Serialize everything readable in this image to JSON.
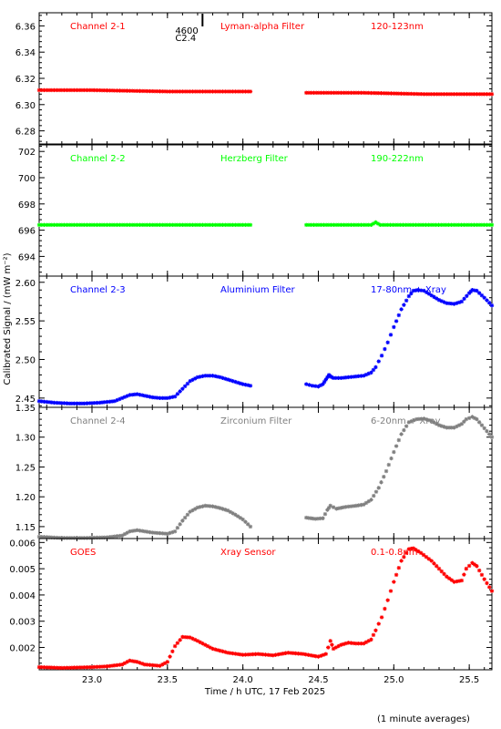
{
  "chart_data": {
    "type": "scatter",
    "ylabel": "Calibrated Signal / (mW m⁻²)",
    "xlabel": "Time / h UTC, 17 Feb 2025",
    "footnote": "(1 minute averages)",
    "xlim": [
      22.65,
      25.65
    ],
    "xticks": [
      "23.0",
      "23.5",
      "24.0",
      "24.5",
      "25.0",
      "25.5"
    ],
    "flare_marker": {
      "x": 23.66,
      "labels": [
        "4600",
        "C2.4"
      ]
    },
    "panels": [
      {
        "channel": "Channel 2-1",
        "filter": "Lyman-alpha Filter",
        "band": "120-123nm",
        "color": "#ff0000",
        "ylim": [
          6.27,
          6.37
        ],
        "yticks": [
          "6.28",
          "6.30",
          "6.32",
          "6.34",
          "6.36"
        ],
        "series": [
          {
            "x": [
              22.65,
              23.0,
              23.5,
              24.05
            ],
            "y": [
              6.311,
              6.311,
              6.31,
              6.31
            ]
          },
          {
            "x": [
              24.42,
              24.8,
              25.2,
              25.65
            ],
            "y": [
              6.309,
              6.309,
              6.308,
              6.308
            ]
          }
        ]
      },
      {
        "channel": "Channel 2-2",
        "filter": "Herzberg Filter",
        "band": "190-222nm",
        "color": "#00ff00",
        "ylim": [
          692.5,
          702.5
        ],
        "yticks": [
          "694",
          "696",
          "698",
          "700",
          "702"
        ],
        "series": [
          {
            "x": [
              22.65,
              23.5,
              24.05
            ],
            "y": [
              696.4,
              696.4,
              696.4
            ]
          },
          {
            "x": [
              24.42,
              24.85,
              24.88,
              24.91,
              25.65
            ],
            "y": [
              696.4,
              696.4,
              696.6,
              696.4,
              696.4
            ]
          }
        ]
      },
      {
        "channel": "Channel 2-3",
        "filter": "Aluminium Filter",
        "band": "17-80nm + Xray",
        "color": "#0000ff",
        "ylim": [
          2.438,
          2.608
        ],
        "yticks": [
          "2.45",
          "2.50",
          "2.55",
          "2.60"
        ],
        "series": [
          {
            "x": [
              22.65,
              22.75,
              22.85,
              22.95,
              23.05,
              23.15,
              23.2,
              23.25,
              23.3,
              23.35,
              23.4,
              23.45,
              23.5,
              23.55,
              23.6,
              23.65,
              23.7,
              23.75,
              23.8,
              23.85,
              23.9,
              23.95,
              24.0,
              24.05
            ],
            "y": [
              2.446,
              2.444,
              2.443,
              2.443,
              2.444,
              2.446,
              2.45,
              2.454,
              2.455,
              2.453,
              2.451,
              2.45,
              2.45,
              2.452,
              2.462,
              2.472,
              2.477,
              2.479,
              2.479,
              2.477,
              2.474,
              2.471,
              2.468,
              2.466
            ]
          },
          {
            "x": [
              24.42,
              24.46,
              24.5,
              24.53,
              24.55,
              24.57,
              24.58,
              24.6,
              24.65,
              24.7,
              24.75,
              24.8,
              24.85,
              24.88,
              24.92,
              24.96,
              25.0,
              25.05,
              25.1,
              25.13,
              25.16,
              25.2,
              25.25,
              25.3,
              25.35,
              25.4,
              25.45,
              25.5,
              25.52,
              25.55,
              25.6,
              25.65
            ],
            "y": [
              2.468,
              2.466,
              2.465,
              2.468,
              2.474,
              2.48,
              2.478,
              2.476,
              2.476,
              2.477,
              2.478,
              2.479,
              2.483,
              2.49,
              2.505,
              2.522,
              2.542,
              2.565,
              2.582,
              2.589,
              2.59,
              2.589,
              2.583,
              2.577,
              2.573,
              2.572,
              2.575,
              2.586,
              2.59,
              2.589,
              2.58,
              2.57
            ]
          }
        ]
      },
      {
        "channel": "Channel 2-4",
        "filter": "Zirconium Filter",
        "band": "6-20nm + Xray",
        "color": "#808080",
        "ylim": [
          1.13,
          1.35
        ],
        "yticks": [
          "1.15",
          "1.20",
          "1.25",
          "1.30",
          "1.35"
        ],
        "series": [
          {
            "x": [
              22.65,
              22.8,
              22.95,
              23.1,
              23.2,
              23.25,
              23.3,
              23.4,
              23.5,
              23.55,
              23.6,
              23.65,
              23.7,
              23.75,
              23.8,
              23.85,
              23.9,
              23.95,
              24.0,
              24.05
            ],
            "y": [
              1.133,
              1.131,
              1.131,
              1.132,
              1.135,
              1.142,
              1.144,
              1.14,
              1.138,
              1.142,
              1.16,
              1.175,
              1.182,
              1.185,
              1.184,
              1.181,
              1.177,
              1.17,
              1.162,
              1.15
            ]
          },
          {
            "x": [
              24.42,
              24.48,
              24.53,
              24.56,
              24.58,
              24.62,
              24.68,
              24.75,
              24.8,
              24.85,
              24.9,
              24.95,
              25.0,
              25.05,
              25.1,
              25.15,
              25.2,
              25.25,
              25.3,
              25.35,
              25.4,
              25.45,
              25.48,
              25.52,
              25.55,
              25.6,
              25.65
            ],
            "y": [
              1.165,
              1.163,
              1.164,
              1.178,
              1.185,
              1.18,
              1.183,
              1.185,
              1.187,
              1.195,
              1.215,
              1.243,
              1.275,
              1.305,
              1.325,
              1.33,
              1.331,
              1.327,
              1.32,
              1.316,
              1.316,
              1.322,
              1.33,
              1.334,
              1.33,
              1.315,
              1.3
            ]
          }
        ]
      },
      {
        "channel": "GOES",
        "filter": "Xray Sensor",
        "band": "0.1-0.8nm",
        "color": "#ff0000",
        "ylim": [
          0.00115,
          0.00615
        ],
        "yticks": [
          "0.002",
          "0.003",
          "0.004",
          "0.005",
          "0.006"
        ],
        "series": [
          {
            "x": [
              22.65,
              22.8,
              23.0,
              23.1,
              23.2,
              23.25,
              23.3,
              23.35,
              23.45,
              23.5,
              23.55,
              23.6,
              23.65,
              23.7,
              23.8,
              23.9,
              24.0,
              24.1,
              24.2,
              24.3,
              24.4,
              24.5,
              24.55,
              24.58,
              24.6,
              24.65,
              24.7,
              24.75,
              24.8,
              24.85,
              24.88,
              24.92,
              24.96,
              25.0,
              25.05,
              25.1,
              25.13,
              25.18,
              25.25,
              25.3,
              25.35,
              25.4,
              25.45,
              25.48,
              25.52,
              25.55,
              25.6,
              25.65
            ],
            "y": [
              0.00125,
              0.00122,
              0.00125,
              0.00128,
              0.00135,
              0.0015,
              0.00145,
              0.00135,
              0.0013,
              0.00145,
              0.00205,
              0.0024,
              0.00238,
              0.00225,
              0.00195,
              0.0018,
              0.00172,
              0.00175,
              0.0017,
              0.0018,
              0.00175,
              0.00165,
              0.00175,
              0.00225,
              0.00195,
              0.0021,
              0.00218,
              0.00215,
              0.00215,
              0.0023,
              0.00265,
              0.00315,
              0.0038,
              0.0045,
              0.0053,
              0.00575,
              0.00578,
              0.0056,
              0.0053,
              0.005,
              0.0047,
              0.0045,
              0.00455,
              0.005,
              0.00522,
              0.0051,
              0.0046,
              0.00415
            ]
          }
        ]
      }
    ]
  }
}
